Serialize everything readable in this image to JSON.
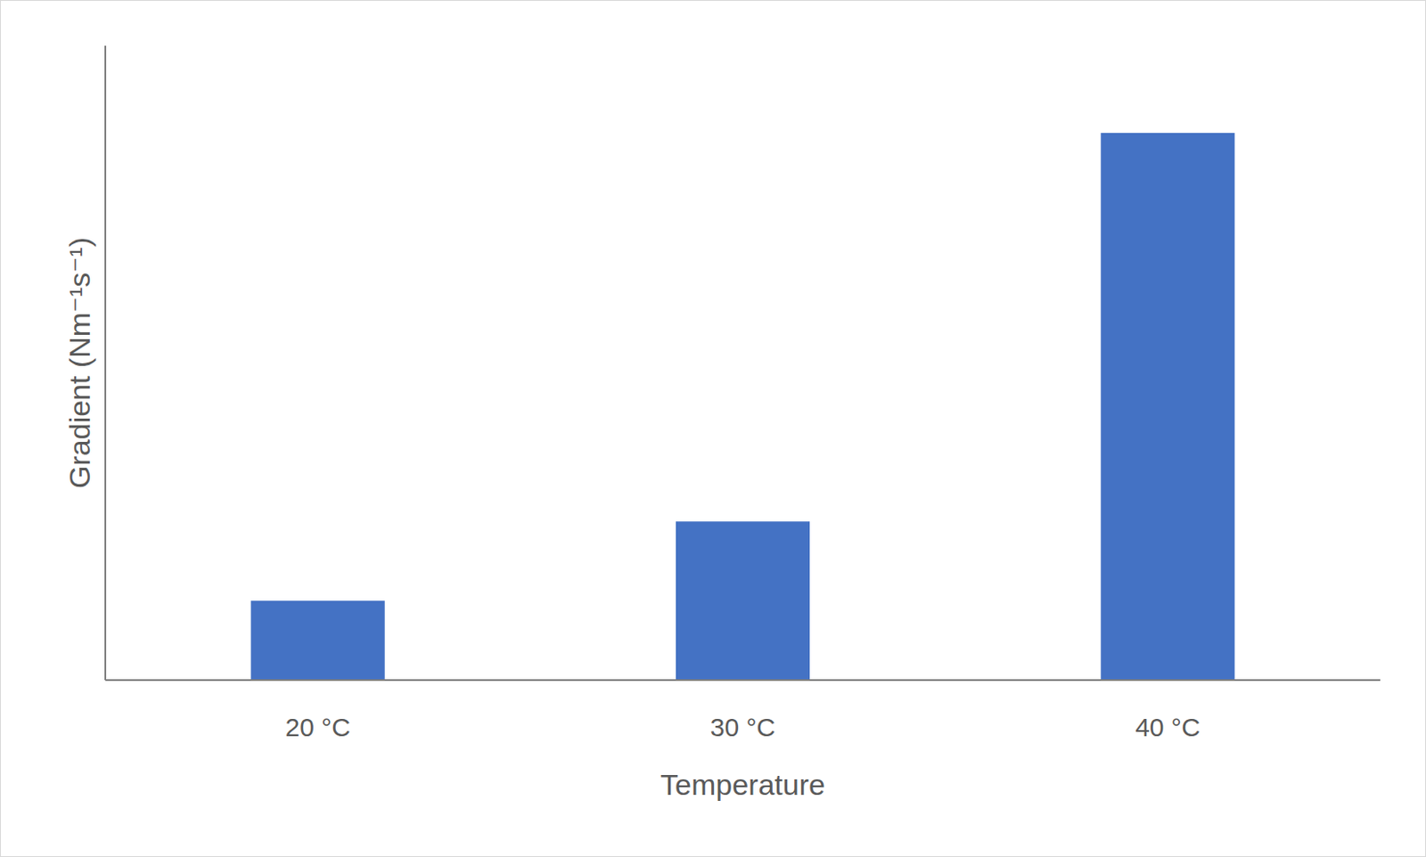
{
  "chart_data": {
    "type": "bar",
    "x_label": "Temperature",
    "y_label": "Gradient (Nm⁻¹s⁻¹)",
    "categories": [
      "20 °C",
      "30 °C",
      "40 °C"
    ],
    "values": [
      1.0,
      2.0,
      6.9
    ],
    "color": "#4472c4",
    "ylim": [
      0,
      8
    ],
    "grid": false,
    "tick_labels": "x"
  }
}
